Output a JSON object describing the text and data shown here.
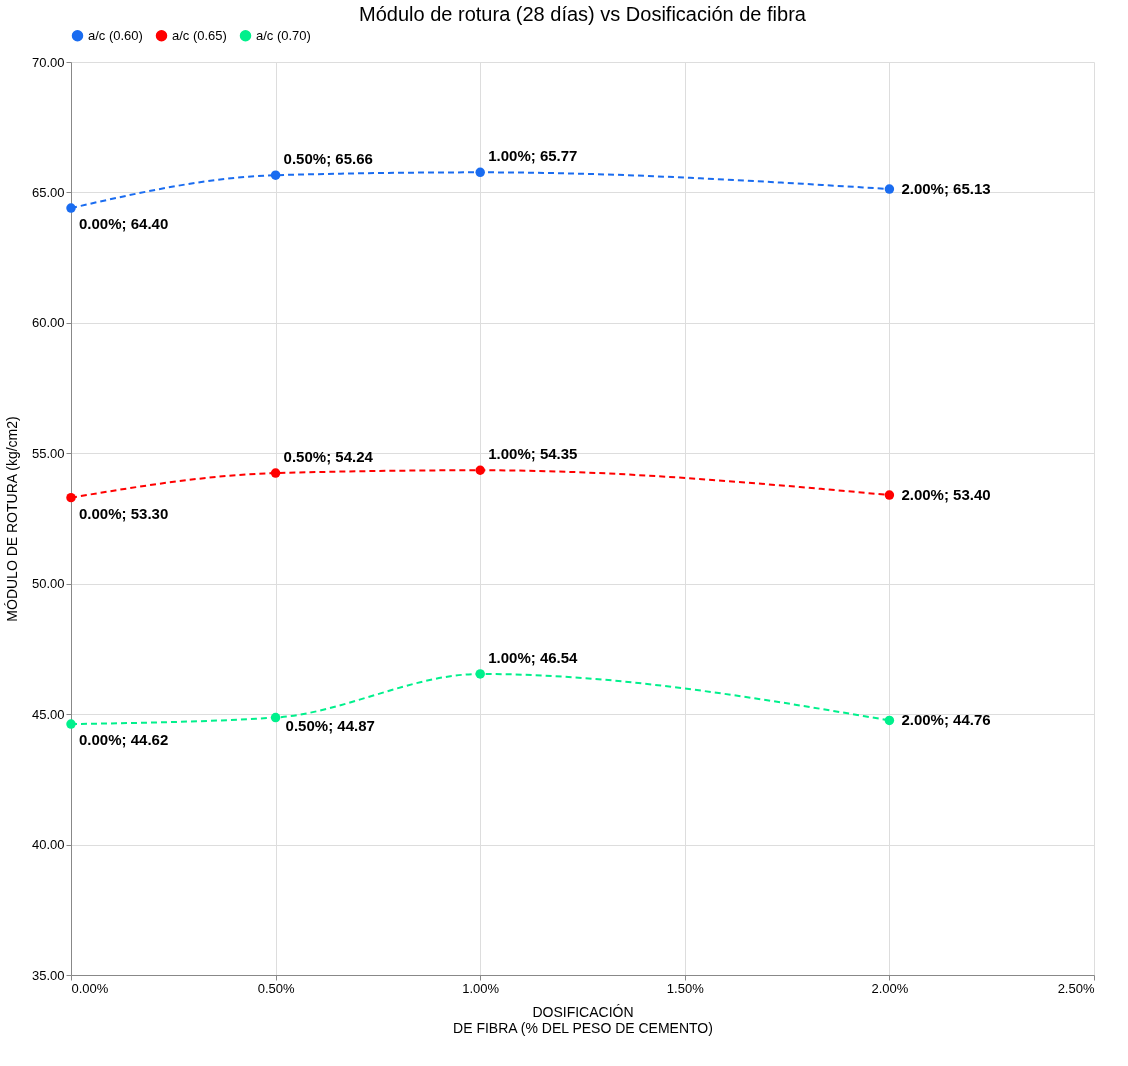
{
  "chart_data": {
    "type": "line",
    "title": "Módulo de rotura (28 días) vs Dosificación de fibra",
    "xlabel": "DOSIFICACIÓN\nDE FIBRA (% DEL PESO DE CEMENTO)",
    "ylabel": "MÓDULO DE ROTURA (kg/cm2)",
    "x": [
      0,
      0.5,
      1,
      2
    ],
    "series": [
      {
        "name": "a/c (0.60)",
        "color": "#1a6cf0",
        "values": [
          64.4,
          65.66,
          65.77,
          65.13
        ],
        "value_labels": [
          "0.00%; 64.40",
          "0.50%; 65.66",
          "1.00%; 65.77",
          "2.00%; 65.13"
        ]
      },
      {
        "name": "a/c (0.65)",
        "color": "#ff0000",
        "values": [
          53.3,
          54.24,
          54.35,
          53.4
        ],
        "value_labels": [
          "0.00%; 53.30",
          "0.50%; 54.24",
          "1.00%; 54.35",
          "2.00%; 53.40"
        ]
      },
      {
        "name": "a/c (0.70)",
        "color": "#00f08c",
        "values": [
          44.62,
          44.87,
          46.54,
          44.76
        ],
        "value_labels": [
          "0.00%; 44.62",
          "0.50%; 44.87",
          "1.00%; 46.54",
          "2.00%; 44.76"
        ]
      }
    ],
    "xlim": [
      0,
      2.5
    ],
    "xticks": [
      {
        "value": 0,
        "label": "0.00%"
      },
      {
        "value": 0.5,
        "label": "0.50%"
      },
      {
        "value": 1,
        "label": "1.00%"
      },
      {
        "value": 1.5,
        "label": "1.50%"
      },
      {
        "value": 2,
        "label": "2.00%"
      },
      {
        "value": 2.5,
        "label": "2.50%"
      }
    ],
    "ylim": [
      35,
      70
    ],
    "yticks": [
      {
        "value": 35,
        "label": "35.00"
      },
      {
        "value": 40,
        "label": "40.00"
      },
      {
        "value": 45,
        "label": "45.00"
      },
      {
        "value": 50,
        "label": "50.00"
      },
      {
        "value": 55,
        "label": "55.00"
      },
      {
        "value": 60,
        "label": "60.00"
      },
      {
        "value": 65,
        "label": "65.00"
      },
      {
        "value": 70,
        "label": "70.00"
      }
    ],
    "grid": true,
    "legend": "top",
    "marker": "circle",
    "line_style": "dashed"
  }
}
